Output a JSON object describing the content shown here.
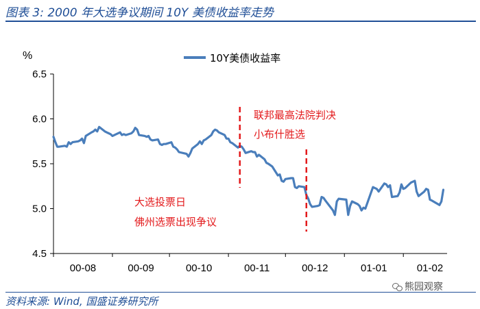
{
  "title": "图表 3:  2000 年大选争议期间 10Y 美债收益率走势",
  "source": "资料来源: Wind, 国盛证券研究所",
  "watermark": "熊园观察",
  "colors": {
    "series": "#4a7ebb",
    "annotation": "#e31a1c",
    "header": "#1f4e96"
  },
  "chart_data": {
    "type": "line",
    "y_unit": "%",
    "ylim": [
      4.5,
      6.5
    ],
    "yticks": [
      "4.5",
      "5.0",
      "5.5",
      "6.0",
      "6.5"
    ],
    "xticks": [
      "00-08",
      "00-09",
      "00-10",
      "00-11",
      "00-12",
      "01-01",
      "01-02"
    ],
    "legend": "10Y美债收益率",
    "legend_position": "top-center",
    "grid": false,
    "series": [
      {
        "name": "10Y美债收益率",
        "x": [
          "2000-08-01",
          "2000-08-02",
          "2000-08-03",
          "2000-08-04",
          "2000-08-07",
          "2000-08-08",
          "2000-08-09",
          "2000-08-10",
          "2000-08-11",
          "2000-08-14",
          "2000-08-15",
          "2000-08-16",
          "2000-08-17",
          "2000-08-18",
          "2000-08-21",
          "2000-08-22",
          "2000-08-23",
          "2000-08-24",
          "2000-08-25",
          "2000-08-28",
          "2000-08-29",
          "2000-08-30",
          "2000-08-31",
          "2000-09-01",
          "2000-09-05",
          "2000-09-06",
          "2000-09-07",
          "2000-09-08",
          "2000-09-11",
          "2000-09-12",
          "2000-09-13",
          "2000-09-14",
          "2000-09-15",
          "2000-09-18",
          "2000-09-19",
          "2000-09-20",
          "2000-09-21",
          "2000-09-22",
          "2000-09-25",
          "2000-09-26",
          "2000-09-27",
          "2000-09-28",
          "2000-09-29",
          "2000-10-02",
          "2000-10-03",
          "2000-10-04",
          "2000-10-05",
          "2000-10-06",
          "2000-10-10",
          "2000-10-11",
          "2000-10-12",
          "2000-10-13",
          "2000-10-16",
          "2000-10-17",
          "2000-10-18",
          "2000-10-19",
          "2000-10-20",
          "2000-10-23",
          "2000-10-24",
          "2000-10-25",
          "2000-10-26",
          "2000-10-27",
          "2000-10-30",
          "2000-10-31",
          "2000-11-01",
          "2000-11-02",
          "2000-11-03",
          "2000-11-06",
          "2000-11-07",
          "2000-11-08",
          "2000-11-09",
          "2000-11-10",
          "2000-11-13",
          "2000-11-14",
          "2000-11-15",
          "2000-11-16",
          "2000-11-17",
          "2000-11-20",
          "2000-11-21",
          "2000-11-22",
          "2000-11-24",
          "2000-11-27",
          "2000-11-28",
          "2000-11-29",
          "2000-11-30",
          "2000-12-01",
          "2000-12-04",
          "2000-12-05",
          "2000-12-06",
          "2000-12-07",
          "2000-12-08",
          "2000-12-11",
          "2000-12-12",
          "2000-12-13",
          "2000-12-14",
          "2000-12-15",
          "2000-12-18",
          "2000-12-19",
          "2000-12-20",
          "2000-12-21",
          "2000-12-22",
          "2000-12-26",
          "2000-12-27",
          "2000-12-28",
          "2000-12-29",
          "2001-01-02",
          "2001-01-03",
          "2001-01-04",
          "2001-01-05",
          "2001-01-08",
          "2001-01-09",
          "2001-01-10",
          "2001-01-11",
          "2001-01-12",
          "2001-01-16",
          "2001-01-17",
          "2001-01-18",
          "2001-01-19",
          "2001-01-22",
          "2001-01-23",
          "2001-01-24",
          "2001-01-25",
          "2001-01-26",
          "2001-01-29",
          "2001-01-30",
          "2001-01-31",
          "2001-02-01",
          "2001-02-02",
          "2001-02-05",
          "2001-02-06",
          "2001-02-07",
          "2001-02-08",
          "2001-02-09",
          "2001-02-12",
          "2001-02-13",
          "2001-02-14",
          "2001-02-15",
          "2001-02-16",
          "2001-02-20",
          "2001-02-21",
          "2001-02-22"
        ],
        "values": [
          5.8,
          5.74,
          5.69,
          5.69,
          5.7,
          5.69,
          5.74,
          5.72,
          5.74,
          5.75,
          5.76,
          5.78,
          5.73,
          5.81,
          5.85,
          5.86,
          5.88,
          5.86,
          5.91,
          5.86,
          5.85,
          5.84,
          5.83,
          5.81,
          5.85,
          5.82,
          5.83,
          5.82,
          5.84,
          5.86,
          5.9,
          5.88,
          5.82,
          5.81,
          5.8,
          5.81,
          5.77,
          5.76,
          5.77,
          5.72,
          5.71,
          5.72,
          5.72,
          5.74,
          5.69,
          5.68,
          5.66,
          5.63,
          5.61,
          5.58,
          5.62,
          5.67,
          5.72,
          5.75,
          5.72,
          5.76,
          5.77,
          5.82,
          5.86,
          5.88,
          5.87,
          5.85,
          5.82,
          5.78,
          5.78,
          5.74,
          5.73,
          5.68,
          5.7,
          5.69,
          5.66,
          5.62,
          5.64,
          5.63,
          5.63,
          5.58,
          5.6,
          5.55,
          5.51,
          5.5,
          5.47,
          5.37,
          5.38,
          5.31,
          5.3,
          5.33,
          5.34,
          5.34,
          5.24,
          5.23,
          5.25,
          5.24,
          5.15,
          5.11,
          5.05,
          5.02,
          5.03,
          5.04,
          5.13,
          5.12,
          5.09,
          4.98,
          4.93,
          5.08,
          5.11,
          5.1,
          4.93,
          5.03,
          5.08,
          5.05,
          5.03,
          4.98,
          5.01,
          5.0,
          5.24,
          5.23,
          5.22,
          5.19,
          5.28,
          5.27,
          5.24,
          5.26,
          5.13,
          5.14,
          5.18,
          5.27,
          5.22,
          5.23,
          5.29,
          5.3,
          5.31,
          5.19,
          5.14,
          5.19,
          5.22,
          5.21,
          5.1,
          5.09,
          5.04,
          5.08,
          5.21
        ]
      }
    ],
    "annotations": [
      {
        "x": "2000-11-07",
        "lines": [
          "大选投票日",
          "佛州选票出现争议"
        ]
      },
      {
        "x": "2000-12-12",
        "lines": [
          "联邦最高法院判决",
          "小布什胜选"
        ]
      }
    ]
  }
}
